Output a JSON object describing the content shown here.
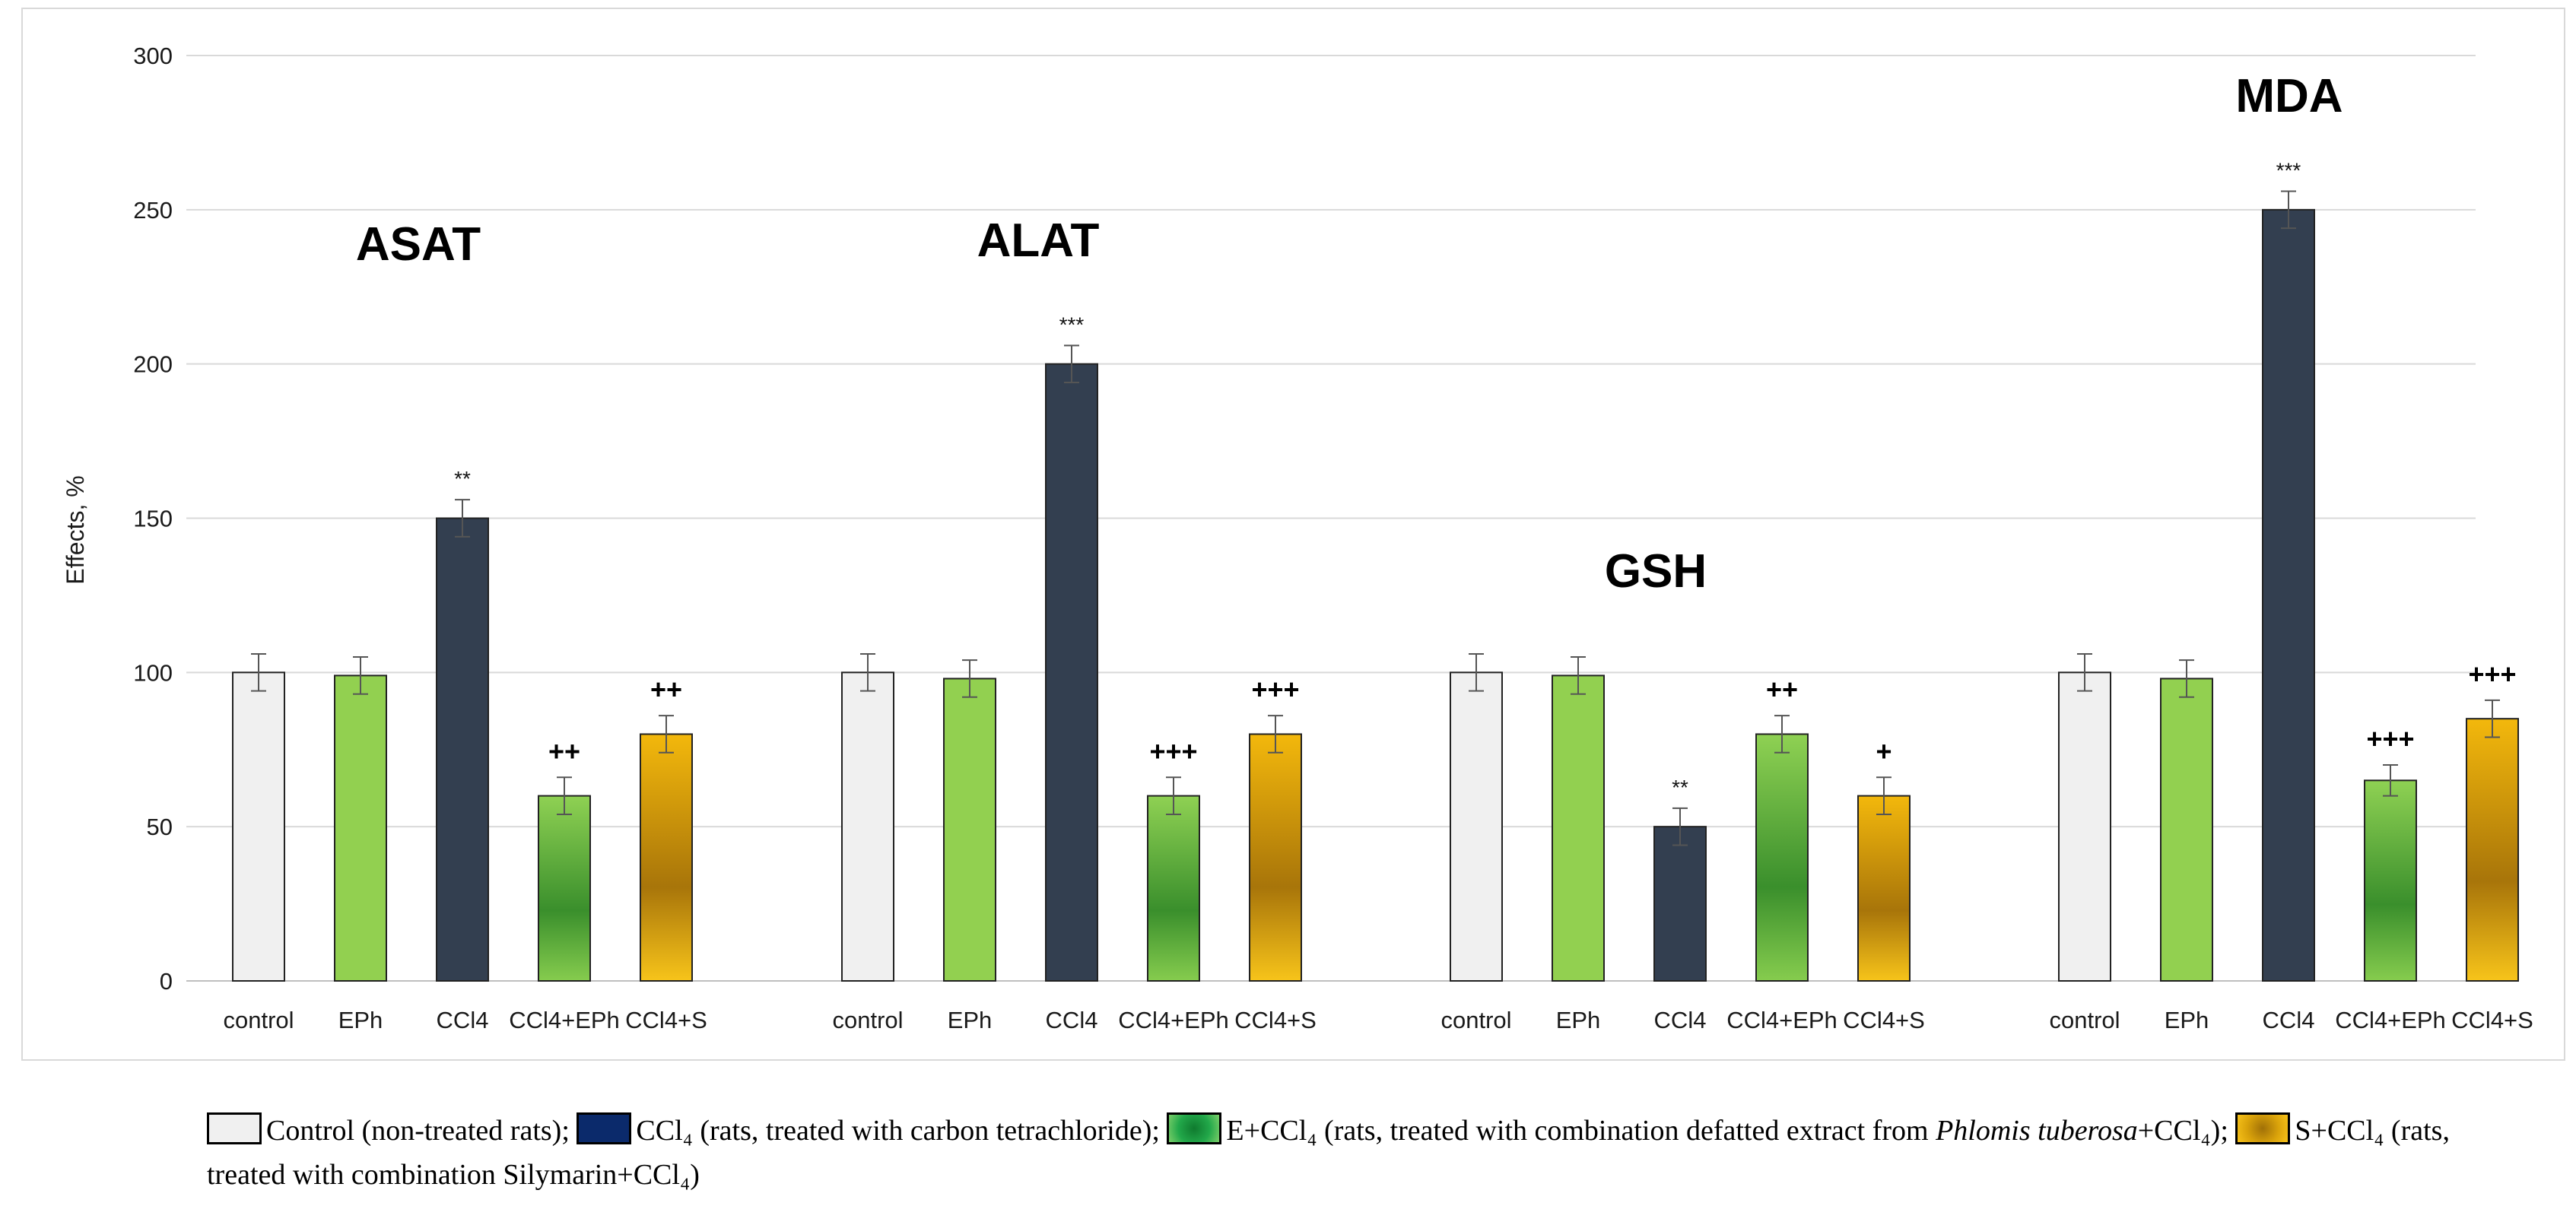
{
  "chart_data": {
    "type": "bar",
    "ylabel": "Effects, %",
    "ylim": [
      0,
      300
    ],
    "yticks": [
      0,
      50,
      100,
      150,
      200,
      250,
      300
    ],
    "grid": true,
    "colors": {
      "control": "#f0f0f0",
      "EPh": "#92d050",
      "CCl4": "#333f50",
      "CCl4+EPh": "#4ea72e",
      "CCl4+S": "#f2b705"
    },
    "groups": [
      {
        "title": "ASAT",
        "categories": [
          "control",
          "EPh",
          "CCl4",
          "CCl4+EPh",
          "CCl4+S"
        ],
        "values": [
          100,
          99,
          150,
          60,
          80
        ],
        "errors": [
          6,
          6,
          6,
          6,
          6
        ],
        "significance": [
          "",
          "",
          "**",
          "++",
          "++"
        ]
      },
      {
        "title": "ALAT",
        "categories": [
          "control",
          "EPh",
          "CCl4",
          "CCl4+EPh",
          "CCl4+S"
        ],
        "values": [
          100,
          98,
          200,
          60,
          80
        ],
        "errors": [
          6,
          6,
          6,
          6,
          6
        ],
        "significance": [
          "",
          "",
          "***",
          "+++",
          "+++"
        ]
      },
      {
        "title": "GSH",
        "categories": [
          "control",
          "EPh",
          "CCl4",
          "CCl4+EPh",
          "CCl4+S"
        ],
        "values": [
          100,
          99,
          50,
          80,
          60
        ],
        "errors": [
          6,
          6,
          6,
          6,
          6
        ],
        "significance": [
          "",
          "",
          "**",
          "++",
          "+"
        ]
      },
      {
        "title": "MDA",
        "categories": [
          "control",
          "EPh",
          "CCl4",
          "CCl4+EPh",
          "CCl4+S"
        ],
        "values": [
          100,
          98,
          250,
          65,
          85
        ],
        "errors": [
          6,
          6,
          6,
          5,
          6
        ],
        "significance": [
          "",
          "",
          "***",
          "+++",
          "+++"
        ]
      }
    ]
  },
  "legend": {
    "control_label": "Control (non-treated rats); ",
    "ccl4_label": "CCl₄ (rats, treated with carbon tetrachloride); ",
    "eccl4_label_pre": "E+CCl₄ (rats, treated with combination defatted extract from ",
    "eccl4_label_italic": "Phlomis tuberosa",
    "eccl4_label_post": "+CCl₄); ",
    "sccl4_label": "S+CCl₄ (rats, treated with combination Silymarin+CCl₄)"
  }
}
